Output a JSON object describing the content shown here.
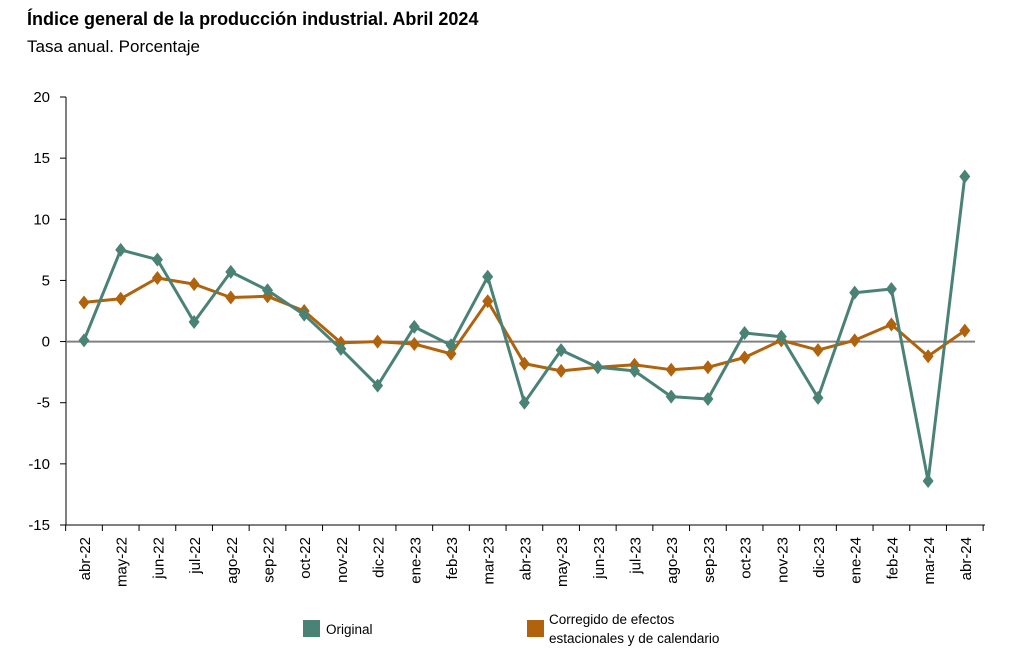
{
  "title": "Índice general de la producción industrial. Abril 2024",
  "subtitle": "Tasa anual. Porcentaje",
  "chart_data": {
    "type": "line",
    "title": "Índice general de la producción industrial. Abril 2024",
    "subtitle": "Tasa anual. Porcentaje",
    "categories": [
      "abr-22",
      "may-22",
      "jun-22",
      "jul-22",
      "ago-22",
      "sep-22",
      "oct-22",
      "nov-22",
      "dic-22",
      "ene-23",
      "feb-23",
      "mar-23",
      "abr-23",
      "may-23",
      "jun-23",
      "jul-23",
      "ago-23",
      "sep-23",
      "oct-23",
      "nov-23",
      "dic-23",
      "ene-24",
      "feb-24",
      "mar-24",
      "abr-24"
    ],
    "yticks": [
      20,
      15,
      10,
      5,
      0,
      -5,
      -10,
      -15
    ],
    "ylim": [
      -15,
      20
    ],
    "series": [
      {
        "name": "Original",
        "color": "#4a8275",
        "values": [
          0.1,
          7.5,
          6.7,
          1.6,
          5.7,
          4.2,
          2.2,
          -0.6,
          -3.6,
          1.2,
          -0.3,
          5.3,
          -5.0,
          -0.7,
          -2.1,
          -2.4,
          -4.5,
          -4.7,
          0.7,
          0.4,
          -4.6,
          4.0,
          4.3,
          -11.4,
          13.5
        ]
      },
      {
        "name": "Corregido de efectos estacionales y de calendario",
        "color": "#b0620d",
        "values": [
          3.2,
          3.5,
          5.2,
          4.7,
          3.6,
          3.7,
          2.5,
          -0.1,
          0.0,
          -0.2,
          -1.0,
          3.3,
          -1.8,
          -2.4,
          -2.1,
          -1.9,
          -2.3,
          -2.1,
          -1.3,
          0.1,
          -0.7,
          0.1,
          1.4,
          -1.2,
          0.9
        ]
      }
    ],
    "legend": {
      "position": "bottom",
      "items": [
        {
          "label": "Original",
          "color": "#4a8275"
        },
        {
          "label_line1": "Corregido de efectos",
          "label_line2": "estacionales y de calendario",
          "color": "#b0620d"
        }
      ]
    },
    "grid": false
  }
}
